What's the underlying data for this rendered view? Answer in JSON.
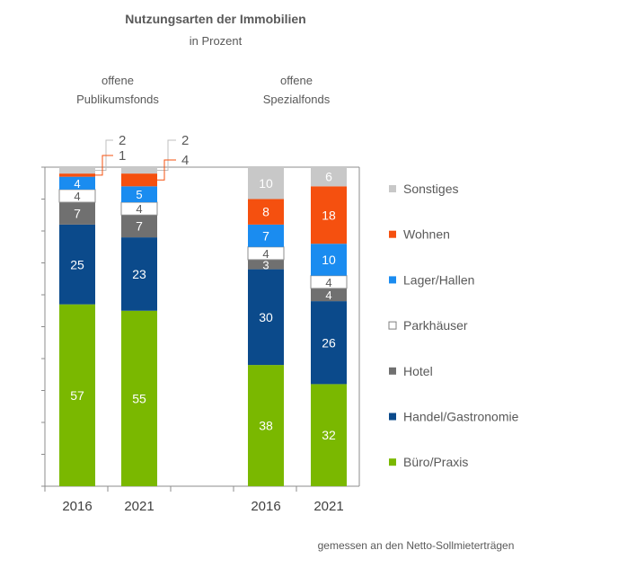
{
  "chart_data": {
    "type": "bar",
    "stacked": true,
    "title": "Nutzungsarten der Immobilien",
    "subtitle": "in Prozent",
    "groups": [
      {
        "label_line1": "offene",
        "label_line2": "Publikumsfonds",
        "categories": [
          "2016",
          "2021"
        ]
      },
      {
        "label_line1": "offene",
        "label_line2": "Spezialfonds",
        "categories": [
          "2016",
          "2021"
        ]
      }
    ],
    "categories": [
      "2016",
      "2021",
      "2016",
      "2021"
    ],
    "ylim": [
      0,
      100
    ],
    "grid": false,
    "legend_position": "right",
    "series": [
      {
        "name": "Büro/Praxis",
        "color": "#7ab800",
        "values": [
          57,
          55,
          38,
          32
        ]
      },
      {
        "name": "Handel/Gastronomie",
        "color": "#0b4a8b",
        "values": [
          25,
          23,
          30,
          26
        ]
      },
      {
        "name": "Hotel",
        "color": "#707070",
        "values": [
          7,
          7,
          3,
          4
        ]
      },
      {
        "name": "Parkhäuser",
        "color": "#ffffff",
        "values": [
          4,
          4,
          4,
          4
        ]
      },
      {
        "name": "Lager/Hallen",
        "color": "#1a8cf0",
        "values": [
          4,
          5,
          7,
          10
        ]
      },
      {
        "name": "Wohnen",
        "color": "#f5500f",
        "values": [
          1,
          4,
          8,
          18
        ]
      },
      {
        "name": "Sonstiges",
        "color": "#c8c8c8",
        "values": [
          2,
          2,
          10,
          6
        ]
      }
    ],
    "legend_order": [
      "Sonstiges",
      "Wohnen",
      "Lager/Hallen",
      "Parkhäuser",
      "Hotel",
      "Handel/Gastronomie",
      "Büro/Praxis"
    ],
    "outside_labels": [
      {
        "bar": 0,
        "series": "Sonstiges",
        "text": "2"
      },
      {
        "bar": 0,
        "series": "Wohnen",
        "text": "1"
      },
      {
        "bar": 1,
        "series": "Sonstiges",
        "text": "2"
      },
      {
        "bar": 1,
        "series": "Wohnen",
        "text": "4"
      }
    ],
    "footnote": "gemessen an den Netto-Sollmieterträgen"
  }
}
